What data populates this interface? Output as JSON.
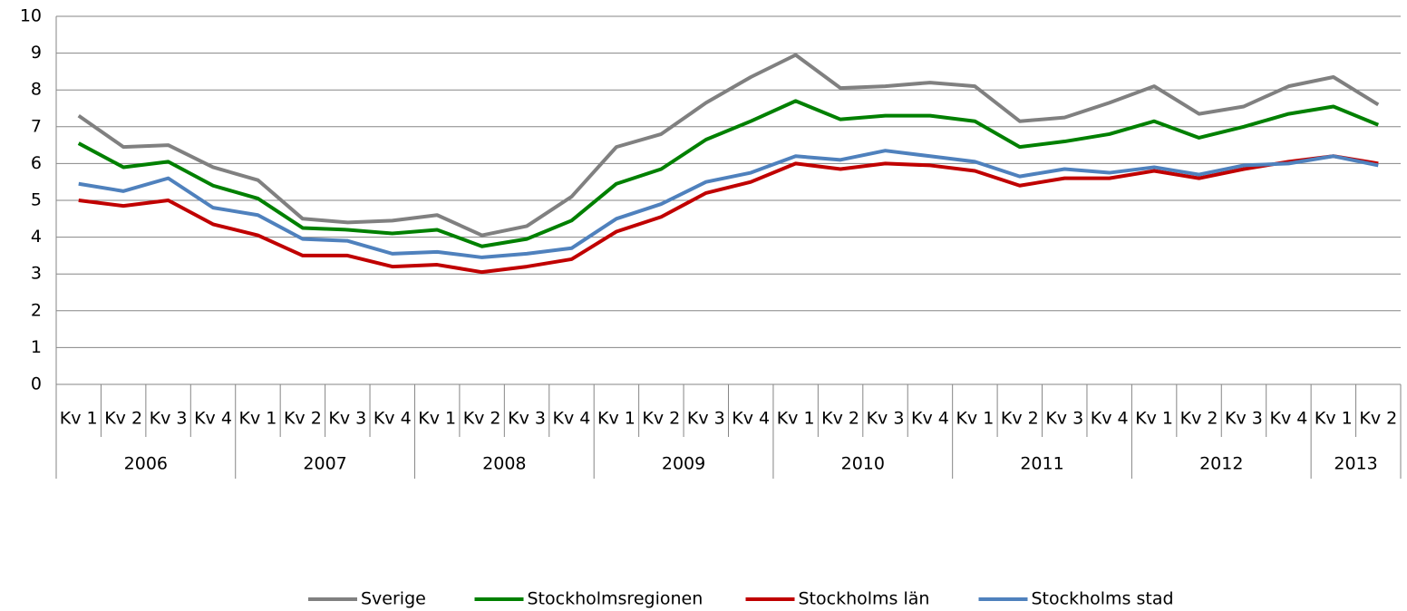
{
  "chart_data": {
    "type": "line",
    "groups": [
      {
        "name": "2006",
        "categories": [
          "Kv 1",
          "Kv 2",
          "Kv 3",
          "Kv 4"
        ]
      },
      {
        "name": "2007",
        "categories": [
          "Kv 1",
          "Kv 2",
          "Kv 3",
          "Kv 4"
        ]
      },
      {
        "name": "2008",
        "categories": [
          "Kv 1",
          "Kv 2",
          "Kv 3",
          "Kv 4"
        ]
      },
      {
        "name": "2009",
        "categories": [
          "Kv 1",
          "Kv 2",
          "Kv 3",
          "Kv 4"
        ]
      },
      {
        "name": "2010",
        "categories": [
          "Kv 1",
          "Kv 2",
          "Kv 3",
          "Kv 4"
        ]
      },
      {
        "name": "2011",
        "categories": [
          "Kv 1",
          "Kv 2",
          "Kv 3",
          "Kv 4"
        ]
      },
      {
        "name": "2012",
        "categories": [
          "Kv 1",
          "Kv 2",
          "Kv 3",
          "Kv 4"
        ]
      },
      {
        "name": "2013",
        "categories": [
          "Kv 1",
          "Kv 2"
        ]
      }
    ],
    "series": [
      {
        "name": "Sverige",
        "color": "#808080",
        "values": [
          7.3,
          6.45,
          6.5,
          5.9,
          5.55,
          4.5,
          4.4,
          4.45,
          4.6,
          4.05,
          4.3,
          5.1,
          6.45,
          6.8,
          7.65,
          8.35,
          8.95,
          8.05,
          8.1,
          8.2,
          8.1,
          7.15,
          7.25,
          7.65,
          8.1,
          7.35,
          7.55,
          8.1,
          8.35,
          7.6
        ]
      },
      {
        "name": "Stockholmsregionen",
        "color": "#008000",
        "values": [
          6.55,
          5.9,
          6.05,
          5.4,
          5.05,
          4.25,
          4.2,
          4.1,
          4.2,
          3.75,
          3.95,
          4.45,
          5.45,
          5.85,
          6.65,
          7.15,
          7.7,
          7.2,
          7.3,
          7.3,
          7.15,
          6.45,
          6.6,
          6.8,
          7.15,
          6.7,
          7.0,
          7.35,
          7.55,
          7.05
        ]
      },
      {
        "name": "Stockholms län",
        "color": "#c00000",
        "values": [
          5.0,
          4.85,
          5.0,
          4.35,
          4.05,
          3.5,
          3.5,
          3.2,
          3.25,
          3.05,
          3.2,
          3.4,
          4.15,
          4.55,
          5.2,
          5.5,
          6.0,
          5.85,
          6.0,
          5.95,
          5.8,
          5.4,
          5.6,
          5.6,
          5.8,
          5.6,
          5.85,
          6.05,
          6.2,
          6.0
        ]
      },
      {
        "name": "Stockholms stad",
        "color": "#4f81bd",
        "values": [
          5.45,
          5.25,
          5.6,
          4.8,
          4.6,
          3.95,
          3.9,
          3.55,
          3.6,
          3.45,
          3.55,
          3.7,
          4.5,
          4.9,
          5.5,
          5.75,
          6.2,
          6.1,
          6.35,
          6.2,
          6.05,
          5.65,
          5.85,
          5.75,
          5.9,
          5.7,
          5.95,
          6.0,
          6.2,
          5.95
        ]
      }
    ],
    "ylim": [
      0,
      10
    ],
    "yticks": [
      0,
      1,
      2,
      3,
      4,
      5,
      6,
      7,
      8,
      9,
      10
    ],
    "grid": true,
    "legend": "bottom"
  }
}
